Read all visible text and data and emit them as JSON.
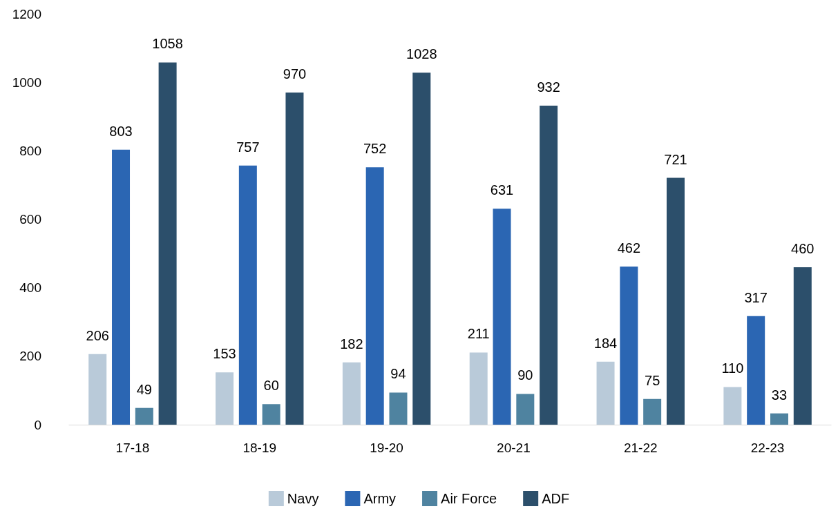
{
  "chart_data": {
    "type": "bar",
    "categories": [
      "17-18",
      "18-19",
      "19-20",
      "20-21",
      "21-22",
      "22-23"
    ],
    "series": [
      {
        "name": "Navy",
        "color": "#b9cad9",
        "values": [
          206,
          153,
          182,
          211,
          184,
          110
        ]
      },
      {
        "name": "Army",
        "color": "#2b66b3",
        "values": [
          803,
          757,
          752,
          631,
          462,
          317
        ]
      },
      {
        "name": "Air Force",
        "color": "#4f83a0",
        "values": [
          49,
          60,
          94,
          90,
          75,
          33
        ]
      },
      {
        "name": "ADF",
        "color": "#2c4f6b",
        "values": [
          1058,
          970,
          1028,
          932,
          721,
          460
        ]
      }
    ],
    "ylim": [
      0,
      1200
    ],
    "yticks": [
      0,
      200,
      400,
      600,
      800,
      1000,
      1200
    ],
    "grid": false,
    "legend": "bottom",
    "data_labels": true
  }
}
